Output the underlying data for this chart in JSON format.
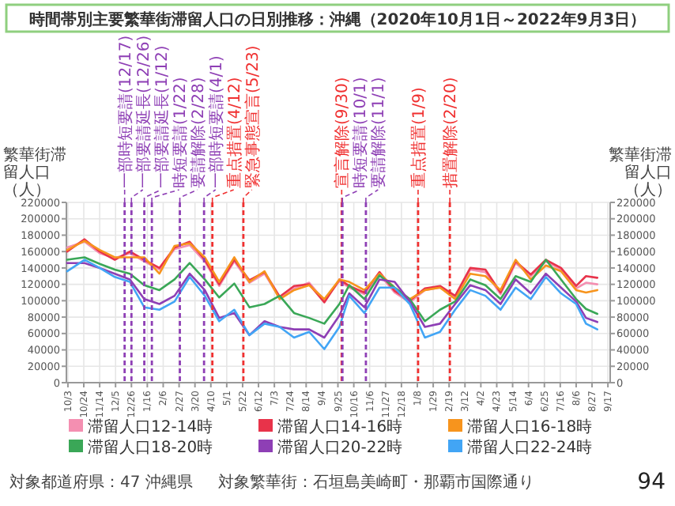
{
  "chart_data": {
    "type": "line",
    "title": "時間帯別主要繁華街滞留人口の日別推移：沖縄（2020年10月1日～2022年9月3日）",
    "ylabel": "繁華街滞留人口（人）",
    "y2label": "繁華街滞留人口（人）",
    "x": [
      "2020-10-02",
      "2020-10-25",
      "2020-11-14",
      "2020-12-04",
      "2020-12-24",
      "2021-01-12",
      "2021-02-01",
      "2021-02-21",
      "2021-03-13",
      "2021-04-02",
      "2021-04-21",
      "2021-05-11",
      "2021-05-31",
      "2021-06-20",
      "2021-07-10",
      "2021-07-29",
      "2021-08-18",
      "2021-09-07",
      "2021-09-27",
      "2021-10-10",
      "2021-10-30",
      "2021-11-19",
      "2021-12-09",
      "2021-12-29",
      "2022-01-18",
      "2022-02-07",
      "2022-02-27",
      "2022-03-19",
      "2022-04-08",
      "2022-04-28",
      "2022-05-18",
      "2022-06-07",
      "2022-06-27",
      "2022-07-17",
      "2022-08-06",
      "2022-08-19",
      "2022-09-03"
    ],
    "series": [
      {
        "name": "滞留人口12-14時",
        "color": "#f48fb1",
        "values": [
          165000,
          172000,
          158000,
          152000,
          158000,
          148000,
          138000,
          163000,
          168000,
          148000,
          118000,
          148000,
          122000,
          133000,
          103000,
          115000,
          122000,
          100000,
          124000,
          116000,
          108000,
          132000,
          110000,
          98000,
          113000,
          116000,
          104000,
          138000,
          135000,
          108000,
          146000,
          130000,
          148000,
          138000,
          115000,
          122000,
          120000
        ]
      },
      {
        "name": "滞留人口14-16時",
        "color": "#e8334a",
        "values": [
          160000,
          175000,
          160000,
          150000,
          160000,
          150000,
          140000,
          165000,
          172000,
          150000,
          120000,
          150000,
          125000,
          135000,
          105000,
          118000,
          120000,
          98000,
          126000,
          118000,
          110000,
          135000,
          112000,
          100000,
          115000,
          118000,
          106000,
          140000,
          138000,
          110000,
          148000,
          132000,
          150000,
          140000,
          118000,
          130000,
          128000
        ]
      },
      {
        "name": "滞留人口16-18時",
        "color": "#f7941d",
        "values": [
          162000,
          173000,
          162000,
          153000,
          153000,
          153000,
          133000,
          167000,
          170000,
          153000,
          123000,
          153000,
          123000,
          136000,
          102000,
          113000,
          119000,
          102000,
          126000,
          123000,
          113000,
          133000,
          116000,
          102000,
          113000,
          116000,
          102000,
          133000,
          130000,
          113000,
          150000,
          126000,
          143000,
          136000,
          113000,
          110000,
          113000
        ]
      },
      {
        "name": "滞留人口18-20時",
        "color": "#3aa757",
        "values": [
          150000,
          153000,
          145000,
          138000,
          133000,
          119000,
          113000,
          126000,
          146000,
          126000,
          104000,
          121000,
          92000,
          96000,
          106000,
          85000,
          79000,
          72000,
          96000,
          119000,
          102000,
          131000,
          116000,
          102000,
          75000,
          89000,
          99000,
          126000,
          119000,
          102000,
          130000,
          123000,
          150000,
          126000,
          102000,
          90000,
          84000
        ]
      },
      {
        "name": "滞留人口20-22時",
        "color": "#8e3fb5",
        "values": [
          146000,
          146000,
          140000,
          133000,
          126000,
          102000,
          96000,
          106000,
          133000,
          113000,
          79000,
          85000,
          58000,
          75000,
          68000,
          65000,
          65000,
          55000,
          82000,
          109000,
          92000,
          126000,
          123000,
          99000,
          68000,
          72000,
          96000,
          119000,
          113000,
          96000,
          126000,
          109000,
          133000,
          116000,
          99000,
          79000,
          74000
        ]
      },
      {
        "name": "滞留人口22-24時",
        "color": "#42a5f5",
        "values": [
          136000,
          150000,
          140000,
          129000,
          123000,
          92000,
          89000,
          99000,
          129000,
          106000,
          75000,
          89000,
          58000,
          72000,
          68000,
          55000,
          62000,
          41000,
          68000,
          106000,
          85000,
          116000,
          116000,
          96000,
          55000,
          62000,
          89000,
          113000,
          106000,
          89000,
          116000,
          102000,
          129000,
          109000,
          96000,
          72000,
          65000
        ]
      }
    ],
    "xlim": [
      "2020-10-01",
      "2022-09-20"
    ],
    "xticks": [
      {
        "value": "2020-10-03",
        "label": "10/3"
      },
      {
        "value": "2020-10-24",
        "label": "10/24"
      },
      {
        "value": "2020-11-14",
        "label": "11/14"
      },
      {
        "value": "2020-12-05",
        "label": "12/5"
      },
      {
        "value": "2020-12-26",
        "label": "12/26"
      },
      {
        "value": "2021-01-16",
        "label": "1/16"
      },
      {
        "value": "2021-02-06",
        "label": "2/6"
      },
      {
        "value": "2021-02-27",
        "label": "2/27"
      },
      {
        "value": "2021-03-20",
        "label": "3/20"
      },
      {
        "value": "2021-04-10",
        "label": "4/10"
      },
      {
        "value": "2021-05-01",
        "label": "5/1"
      },
      {
        "value": "2021-05-22",
        "label": "5/22"
      },
      {
        "value": "2021-06-12",
        "label": "6/12"
      },
      {
        "value": "2021-07-03",
        "label": "7/3"
      },
      {
        "value": "2021-07-24",
        "label": "7/24"
      },
      {
        "value": "2021-08-14",
        "label": "8/14"
      },
      {
        "value": "2021-09-04",
        "label": "9/4"
      },
      {
        "value": "2021-09-25",
        "label": "9/25"
      },
      {
        "value": "2021-10-16",
        "label": "10/16"
      },
      {
        "value": "2021-11-06",
        "label": "11/6"
      },
      {
        "value": "2021-11-27",
        "label": "11/27"
      },
      {
        "value": "2021-12-18",
        "label": "12/18"
      },
      {
        "value": "2022-01-08",
        "label": "1/8"
      },
      {
        "value": "2022-01-29",
        "label": "1/29"
      },
      {
        "value": "2022-02-19",
        "label": "2/19"
      },
      {
        "value": "2022-03-12",
        "label": "3/12"
      },
      {
        "value": "2022-04-02",
        "label": "4/2"
      },
      {
        "value": "2022-04-23",
        "label": "4/23"
      },
      {
        "value": "2022-05-14",
        "label": "5/14"
      },
      {
        "value": "2022-06-04",
        "label": "6/4"
      },
      {
        "value": "2022-06-25",
        "label": "6/25"
      },
      {
        "value": "2022-07-16",
        "label": "7/16"
      },
      {
        "value": "2022-08-06",
        "label": "8/6"
      },
      {
        "value": "2022-08-27",
        "label": "8/27"
      },
      {
        "value": "2022-09-17",
        "label": "9/17"
      }
    ],
    "ylim": [
      0,
      220000
    ],
    "yticks": [
      0,
      20000,
      40000,
      60000,
      80000,
      100000,
      120000,
      140000,
      160000,
      180000,
      200000,
      220000
    ],
    "y2lim": [
      0,
      220000
    ],
    "y2ticks": [
      0,
      20000,
      40000,
      60000,
      80000,
      100000,
      120000,
      140000,
      160000,
      180000,
      200000,
      220000
    ],
    "ref_lines": [
      {
        "axis": "x",
        "value": "2020-12-17",
        "label": "一部時短要請(12/17)",
        "color": "#8e3fb5",
        "line_style": "dashed"
      },
      {
        "axis": "x",
        "value": "2020-12-26",
        "label": "一部要請延長(12/26)",
        "color": "#8e3fb5",
        "line_style": "dashed"
      },
      {
        "axis": "x",
        "value": "2021-01-12",
        "label": "一部要請延長(1/12)",
        "color": "#8e3fb5",
        "line_style": "dashed"
      },
      {
        "axis": "x",
        "value": "2021-01-22",
        "label": "時短要請(1/22)",
        "color": "#8e3fb5",
        "line_style": "dashed"
      },
      {
        "axis": "x",
        "value": "2021-02-28",
        "label": "要請解除(2/28)",
        "color": "#8e3fb5",
        "line_style": "dashed"
      },
      {
        "axis": "x",
        "value": "2021-04-01",
        "label": "一部時短要請(4/1)",
        "color": "#8e3fb5",
        "line_style": "dashed"
      },
      {
        "axis": "x",
        "value": "2021-04-12",
        "label": "重点措置(4/12)",
        "color": "#f03030",
        "line_style": "dashed"
      },
      {
        "axis": "x",
        "value": "2021-05-23",
        "label": "緊急事態宣言(5/23)",
        "color": "#f03030",
        "line_style": "dashed"
      },
      {
        "axis": "x",
        "value": "2021-09-30",
        "label": "宣言解除(9/30)",
        "color": "#f03030",
        "line_style": "dashed"
      },
      {
        "axis": "x",
        "value": "2021-10-01",
        "label": "時短要請(10/1)",
        "color": "#8e3fb5",
        "line_style": "dashed"
      },
      {
        "axis": "x",
        "value": "2021-11-01",
        "label": "要請解除(11/1)",
        "color": "#8e3fb5",
        "line_style": "dashed"
      },
      {
        "axis": "x",
        "value": "2022-01-09",
        "label": "重点措置(1/9)",
        "color": "#f03030",
        "line_style": "dashed"
      },
      {
        "axis": "x",
        "value": "2022-02-20",
        "label": "措置解除(2/20)",
        "color": "#f03030",
        "line_style": "dashed"
      }
    ],
    "annotations": [
      "対象都道府県：47 沖縄県",
      "対象繁華街：石垣島美崎町・那覇市国際通り",
      "94"
    ],
    "grid": true,
    "legend": "bottom",
    "marker": "none",
    "line_style": "solid"
  }
}
